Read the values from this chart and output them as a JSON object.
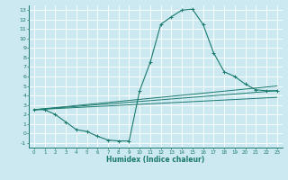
{
  "xlabel": "Humidex (Indice chaleur)",
  "background_color": "#cce8f0",
  "grid_color": "#ffffff",
  "line_color": "#1a7a6e",
  "xlim": [
    -0.5,
    23.5
  ],
  "ylim": [
    -1.5,
    13.5
  ],
  "xticks": [
    0,
    1,
    2,
    3,
    4,
    5,
    6,
    7,
    8,
    9,
    10,
    11,
    12,
    13,
    14,
    15,
    16,
    17,
    18,
    19,
    20,
    21,
    22,
    23
  ],
  "yticks": [
    -1,
    0,
    1,
    2,
    3,
    4,
    5,
    6,
    7,
    8,
    9,
    10,
    11,
    12,
    13
  ],
  "main_line": {
    "x": [
      0,
      1,
      2,
      3,
      4,
      5,
      6,
      7,
      8,
      9,
      10,
      11,
      12,
      13,
      14,
      15,
      16,
      17,
      18,
      19,
      20,
      21,
      22,
      23
    ],
    "y": [
      2.5,
      2.5,
      2.0,
      1.2,
      0.4,
      0.2,
      -0.3,
      -0.7,
      -0.8,
      -0.8,
      4.5,
      7.5,
      11.5,
      12.3,
      13.0,
      13.1,
      11.5,
      8.5,
      6.5,
      6.0,
      5.2,
      4.6,
      4.5,
      4.5
    ]
  },
  "extra_lines": [
    {
      "x": [
        0,
        23
      ],
      "y": [
        2.5,
        5.0
      ]
    },
    {
      "x": [
        0,
        23
      ],
      "y": [
        2.5,
        4.5
      ]
    },
    {
      "x": [
        0,
        23
      ],
      "y": [
        2.5,
        3.8
      ]
    }
  ]
}
